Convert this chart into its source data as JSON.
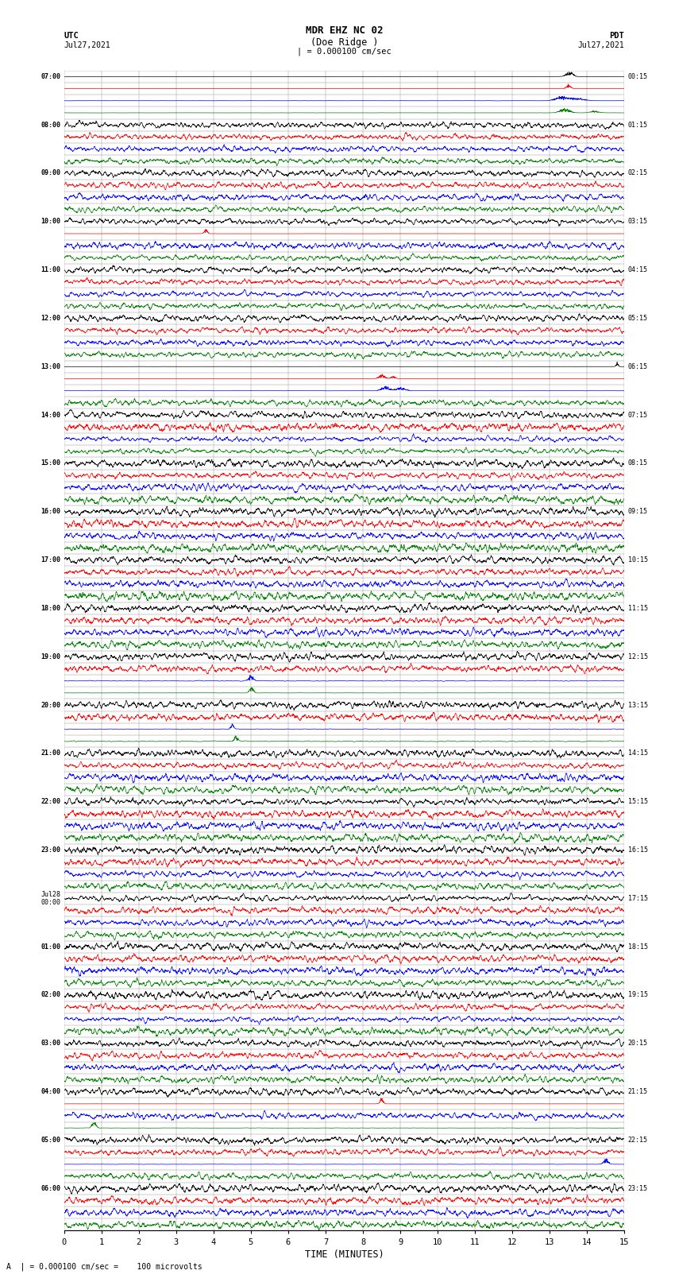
{
  "title_line1": "MDR EHZ NC 02",
  "title_line2": "(Doe Ridge )",
  "scale_label": "| = 0.000100 cm/sec",
  "left_label": "UTC",
  "left_date": "Jul27,2021",
  "right_label": "PDT",
  "right_date": "Jul27,2021",
  "xlabel": "TIME (MINUTES)",
  "bottom_annotation": "A  | = 0.000100 cm/sec =    100 microvolts",
  "x_min": 0,
  "x_max": 15,
  "x_ticks": [
    0,
    1,
    2,
    3,
    4,
    5,
    6,
    7,
    8,
    9,
    10,
    11,
    12,
    13,
    14,
    15
  ],
  "background_color": "#ffffff",
  "trace_colors": [
    "black",
    "red",
    "blue",
    "green"
  ],
  "num_hour_rows": 24,
  "traces_per_hour": 4,
  "utc_hour_labels": [
    "07:00",
    "08:00",
    "09:00",
    "10:00",
    "11:00",
    "12:00",
    "13:00",
    "14:00",
    "15:00",
    "16:00",
    "17:00",
    "18:00",
    "19:00",
    "20:00",
    "21:00",
    "22:00",
    "23:00",
    "Jul28\n00:00",
    "01:00",
    "02:00",
    "03:00",
    "04:00",
    "05:00",
    "06:00"
  ],
  "pdt_hour_labels": [
    "00:15",
    "01:15",
    "02:15",
    "03:15",
    "04:15",
    "05:15",
    "06:15",
    "07:15",
    "08:15",
    "09:15",
    "10:15",
    "11:15",
    "12:15",
    "13:15",
    "14:15",
    "15:15",
    "16:15",
    "17:15",
    "18:15",
    "19:15",
    "20:15",
    "21:15",
    "22:15",
    "23:15"
  ]
}
